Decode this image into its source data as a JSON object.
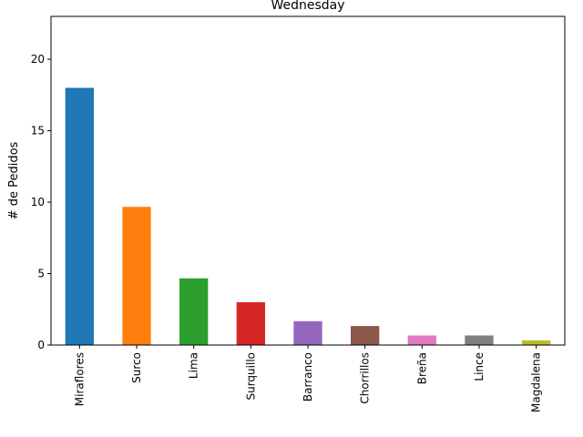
{
  "chart_data": {
    "type": "bar",
    "title": "Wednesday",
    "xlabel": "",
    "ylabel": "# de Pedidos",
    "categories": [
      "Miraflores",
      "Surco",
      "Lima",
      "Surquillo",
      "Barranco",
      "Chorrillos",
      "Breña",
      "Lince",
      "Magdalena"
    ],
    "values": [
      18.0,
      9.67,
      4.67,
      3.0,
      1.67,
      1.33,
      0.67,
      0.67,
      0.33
    ],
    "colors": [
      "#1f77b4",
      "#ff7f0e",
      "#2ca02c",
      "#d62728",
      "#9467bd",
      "#8c564b",
      "#e377c2",
      "#7f7f7f",
      "#bcbd22"
    ],
    "ylim": [
      0,
      23
    ],
    "yticks": [
      0,
      5,
      10,
      15,
      20
    ],
    "grid": false,
    "legend": "none"
  }
}
